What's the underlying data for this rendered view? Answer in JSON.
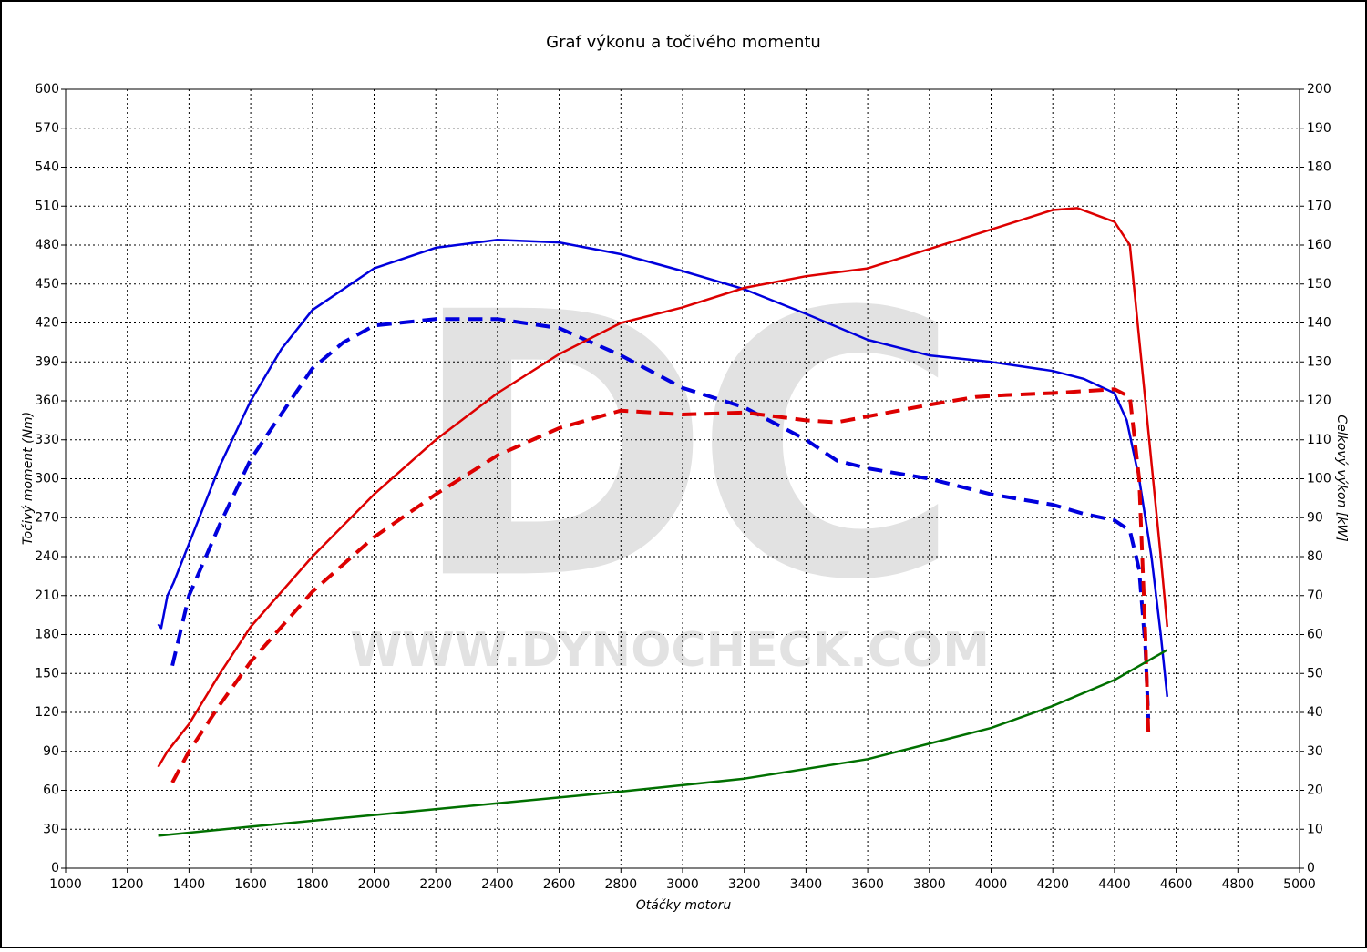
{
  "chart_data": {
    "type": "line",
    "title": "Graf výkonu a točivého momentu",
    "xlabel": "Otáčky motoru",
    "ylabel": "Točivý moment (Nm)",
    "y2label": "Celkový výkon [kW]",
    "watermark": [
      "DC",
      "WWW.DYNOCHECK.COM"
    ],
    "grid": true,
    "xlim": [
      1000,
      5000
    ],
    "xticks": [
      1000,
      1200,
      1400,
      1600,
      1800,
      2000,
      2200,
      2400,
      2600,
      2800,
      3000,
      3200,
      3400,
      3600,
      3800,
      4000,
      4200,
      4400,
      4600,
      4800,
      5000
    ],
    "ylim": [
      0,
      600
    ],
    "yticks": [
      0,
      30,
      60,
      90,
      120,
      150,
      180,
      210,
      240,
      270,
      300,
      330,
      360,
      390,
      420,
      450,
      480,
      510,
      540,
      570,
      600
    ],
    "y2lim": [
      0,
      200
    ],
    "y2ticks": [
      0,
      10,
      20,
      30,
      40,
      50,
      60,
      70,
      80,
      90,
      100,
      110,
      120,
      130,
      140,
      150,
      160,
      170,
      180,
      190,
      200
    ],
    "series": [
      {
        "color": "#0000dd",
        "dashed": false,
        "axis": "y",
        "x": [
          1300,
          1310,
          1330,
          1350,
          1400,
          1500,
          1600,
          1700,
          1800,
          2000,
          2200,
          2400,
          2600,
          2800,
          3000,
          3200,
          3400,
          3600,
          3800,
          4000,
          4200,
          4300,
          4400,
          4440,
          4480,
          4520,
          4550,
          4571
        ],
        "values": [
          188,
          185,
          210,
          220,
          250,
          310,
          360,
          400,
          430,
          462,
          478,
          484,
          482,
          473,
          460,
          446,
          427,
          407,
          395,
          390,
          383,
          377,
          366,
          345,
          300,
          240,
          180,
          132
        ]
      },
      {
        "color": "#0000dd",
        "dashed": true,
        "axis": "y",
        "x": [
          1346,
          1400,
          1500,
          1600,
          1700,
          1800,
          1900,
          2000,
          2200,
          2400,
          2600,
          2800,
          3000,
          3200,
          3400,
          3500,
          3600,
          3800,
          4000,
          4200,
          4300,
          4400,
          4450,
          4480,
          4500,
          4510
        ],
        "values": [
          156,
          210,
          265,
          315,
          350,
          385,
          405,
          418,
          423,
          423,
          416,
          395,
          370,
          355,
          330,
          314,
          308,
          300,
          288,
          280,
          273,
          268,
          260,
          230,
          170,
          115
        ]
      },
      {
        "color": "#dd0000",
        "dashed": false,
        "axis": "y2",
        "x": [
          1300,
          1330,
          1400,
          1500,
          1600,
          1800,
          2000,
          2200,
          2400,
          2600,
          2800,
          3000,
          3200,
          3400,
          3600,
          3800,
          4000,
          4200,
          4280,
          4400,
          4450,
          4500,
          4550,
          4571
        ],
        "values": [
          26,
          30,
          37,
          50,
          62,
          80,
          96,
          110,
          122,
          132,
          140,
          144,
          149,
          152,
          154,
          159,
          164,
          169,
          169.5,
          166,
          160,
          120,
          80,
          62
        ]
      },
      {
        "color": "#dd0000",
        "dashed": true,
        "axis": "y2",
        "x": [
          1346,
          1400,
          1500,
          1600,
          1800,
          2000,
          2200,
          2400,
          2600,
          2800,
          3000,
          3200,
          3400,
          3500,
          3600,
          3800,
          3950,
          4050,
          4200,
          4400,
          4450,
          4480,
          4500,
          4510
        ],
        "values": [
          22,
          30,
          42,
          53,
          71,
          85,
          96,
          106,
          113,
          117.5,
          116.5,
          117,
          115,
          114.5,
          116,
          119,
          121,
          121.5,
          122,
          123,
          121,
          100,
          60,
          35
        ]
      },
      {
        "color": "#007000",
        "dashed": false,
        "axis": "y",
        "x": [
          1300,
          1600,
          2000,
          2400,
          2800,
          3200,
          3600,
          4000,
          4200,
          4400,
          4570
        ],
        "values": [
          25,
          32,
          41,
          50,
          59,
          69,
          84,
          108,
          125,
          145,
          168
        ]
      }
    ]
  }
}
